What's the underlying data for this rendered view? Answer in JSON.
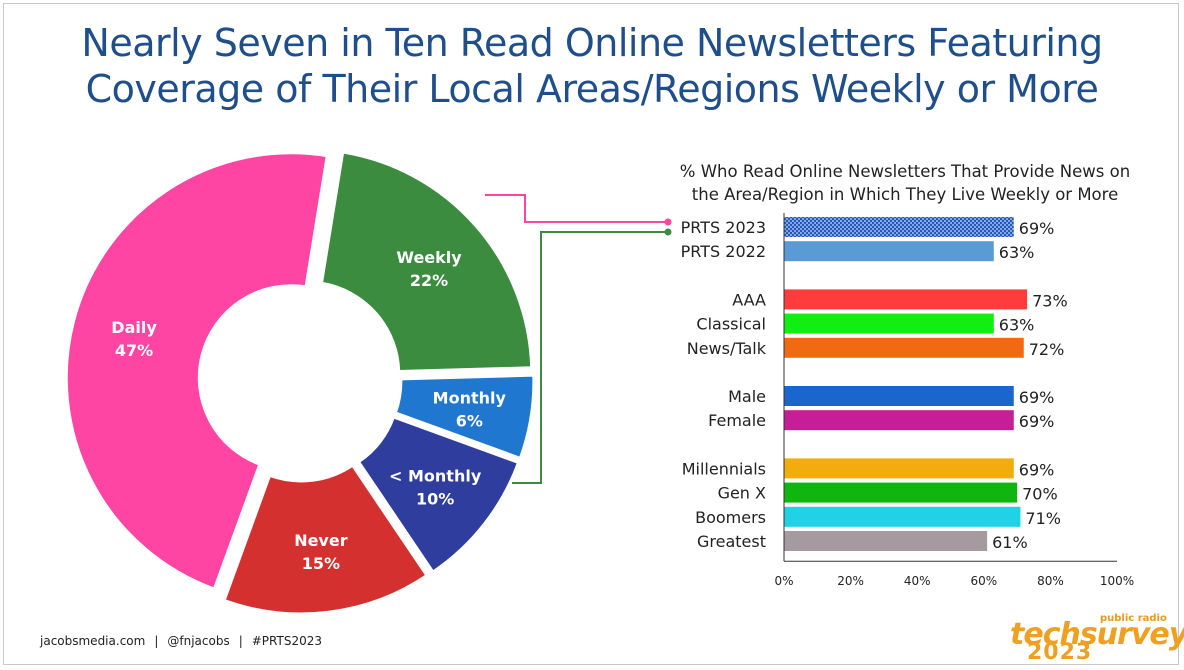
{
  "title_line1": "Nearly Seven in Ten Read Online Newsletters Featuring",
  "title_line2": "Coverage of Their Local Areas/Regions Weekly or More",
  "chart_data": [
    {
      "type": "pie",
      "slices": [
        {
          "label": "Daily",
          "value": 47,
          "value_label": "47%",
          "color": "#ff45a3"
        },
        {
          "label": "Weekly",
          "value": 22,
          "value_label": "22%",
          "color": "#3b8c3f"
        },
        {
          "label": "Monthly",
          "value": 6,
          "value_label": "6%",
          "color": "#1f77d0"
        },
        {
          "label": "< Monthly",
          "value": 10,
          "value_label": "10%",
          "color": "#2e3d9e"
        },
        {
          "label": "Never",
          "value": 15,
          "value_label": "15%",
          "color": "#d43030"
        }
      ]
    },
    {
      "type": "bar",
      "orientation": "horizontal",
      "title_line1": "% Who Read Online Newsletters That Provide News on",
      "title_line2": "the Area/Region in Which They Live Weekly or More",
      "xlim": [
        0,
        100
      ],
      "xticks": [
        "0%",
        "20%",
        "40%",
        "60%",
        "80%",
        "100%"
      ],
      "bars": [
        {
          "label": "PRTS 2023",
          "value": 69,
          "value_label": "69%",
          "color": "#2a56b4",
          "pattern": true,
          "group": 0
        },
        {
          "label": "PRTS 2022",
          "value": 63,
          "value_label": "63%",
          "color": "#5b9bd5",
          "group": 0
        },
        {
          "label": "AAA",
          "value": 73,
          "value_label": "73%",
          "color": "#ff3b3b",
          "group": 1
        },
        {
          "label": "Classical",
          "value": 63,
          "value_label": "63%",
          "color": "#11ee11",
          "group": 1
        },
        {
          "label": "News/Talk",
          "value": 72,
          "value_label": "72%",
          "color": "#f06a14",
          "group": 1
        },
        {
          "label": "Male",
          "value": 69,
          "value_label": "69%",
          "color": "#1b66cc",
          "group": 2
        },
        {
          "label": "Female",
          "value": 69,
          "value_label": "69%",
          "color": "#c61e96",
          "group": 2
        },
        {
          "label": "Millennials",
          "value": 69,
          "value_label": "69%",
          "color": "#f0ad0b",
          "group": 3
        },
        {
          "label": "Gen X",
          "value": 70,
          "value_label": "70%",
          "color": "#10b510",
          "group": 3
        },
        {
          "label": "Boomers",
          "value": 71,
          "value_label": "71%",
          "color": "#1fd2e6",
          "group": 3
        },
        {
          "label": "Greatest",
          "value": 61,
          "value_label": "61%",
          "color": "#a59aa0",
          "group": 3
        }
      ]
    }
  ],
  "footer": {
    "site": "jacobsmedia.com",
    "sep1": "|",
    "handle": "@fnjacobs",
    "sep2": "|",
    "hashtag": "#PRTS2023"
  },
  "logo": {
    "tag": "public radio",
    "name": "techsurvey",
    "year": "2023"
  }
}
